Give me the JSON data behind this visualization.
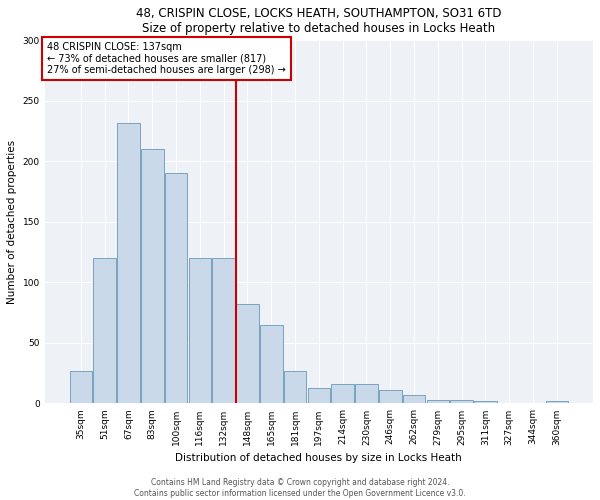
{
  "title_line1": "48, CRISPIN CLOSE, LOCKS HEATH, SOUTHAMPTON, SO31 6TD",
  "title_line2": "Size of property relative to detached houses in Locks Heath",
  "xlabel": "Distribution of detached houses by size in Locks Heath",
  "ylabel": "Number of detached properties",
  "footer_line1": "Contains HM Land Registry data © Crown copyright and database right 2024.",
  "footer_line2": "Contains public sector information licensed under the Open Government Licence v3.0.",
  "annotation_line1": "48 CRISPIN CLOSE: 137sqm",
  "annotation_line2": "← 73% of detached houses are smaller (817)",
  "annotation_line3": "27% of semi-detached houses are larger (298) →",
  "bar_color": "#c9d9ea",
  "bar_edge_color": "#6699bb",
  "highlight_line_color": "#cc0000",
  "annotation_box_edge_color": "#cc0000",
  "background_color": "#eef2f7",
  "categories": [
    "35sqm",
    "51sqm",
    "67sqm",
    "83sqm",
    "100sqm",
    "116sqm",
    "132sqm",
    "148sqm",
    "165sqm",
    "181sqm",
    "197sqm",
    "214sqm",
    "230sqm",
    "246sqm",
    "262sqm",
    "279sqm",
    "295sqm",
    "311sqm",
    "327sqm",
    "344sqm",
    "360sqm"
  ],
  "values": [
    27,
    120,
    232,
    210,
    190,
    120,
    120,
    82,
    65,
    27,
    13,
    16,
    16,
    11,
    7,
    3,
    3,
    2,
    0,
    0,
    2
  ],
  "highlight_index": 6,
  "ylim": [
    0,
    300
  ],
  "yticks": [
    0,
    50,
    100,
    150,
    200,
    250,
    300
  ],
  "title_fontsize": 8.5,
  "axis_label_fontsize": 7.5,
  "tick_fontsize": 6.5,
  "ylabel_fontsize": 7.5,
  "footer_fontsize": 5.5,
  "annotation_fontsize": 7.0
}
